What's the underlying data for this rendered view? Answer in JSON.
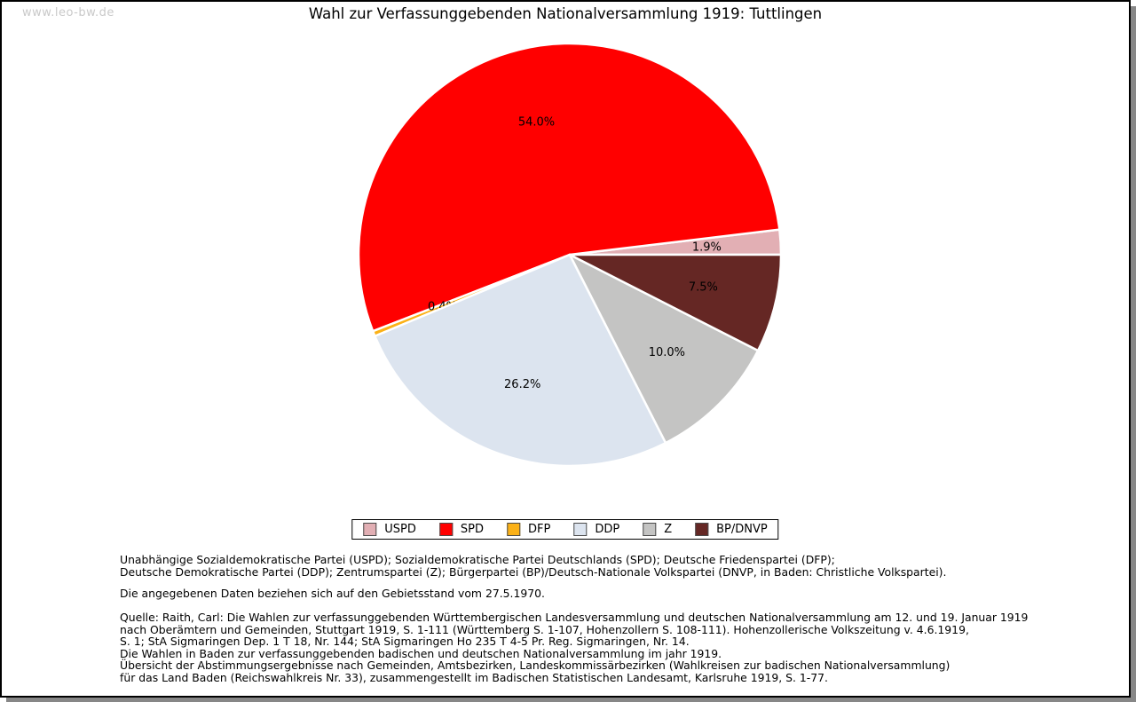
{
  "watermark": "www.leo-bw.de",
  "title": "Wahl zur Verfassunggebenden Nationalversammlung 1919: Tuttlingen",
  "chart_data": {
    "type": "pie",
    "title": "Wahl zur Verfassunggebenden Nationalversammlung 1919: Tuttlingen",
    "unit": "percent",
    "start_angle_deg": 0,
    "direction": "counterclockwise",
    "slices": [
      {
        "label": "USPD",
        "value": 1.9,
        "color": "#e2afb4"
      },
      {
        "label": "SPD",
        "value": 54.0,
        "color": "#ff0000"
      },
      {
        "label": "DFP",
        "value": 0.4,
        "color": "#fbb117"
      },
      {
        "label": "DDP",
        "value": 26.2,
        "color": "#dce4ef"
      },
      {
        "label": "Z",
        "value": 10.0,
        "color": "#c4c4c3"
      },
      {
        "label": "BP/DNVP",
        "value": 7.5,
        "color": "#652724"
      }
    ],
    "legend": {
      "position": "bottom",
      "entries": [
        "USPD",
        "SPD",
        "DFP",
        "DDP",
        "Z",
        "BP/DNVP"
      ]
    },
    "value_labels": [
      "1.9%",
      "54.0%",
      "0.4%",
      "26.2%",
      "10.0%",
      "7.5%"
    ]
  },
  "notes": {
    "party_definitions": [
      "Unabhängige Sozialdemokratische Partei (USPD); Sozialdemokratische Partei Deutschlands (SPD); Deutsche Friedenspartei (DFP);",
      "Deutsche Demokratische Partei (DDP); Zentrumspartei (Z); Bürgerpartei (BP)/Deutsch-Nationale Volkspartei (DNVP, in Baden: Christliche Volkspartei)."
    ],
    "data_note": "Die angegebenen Daten beziehen sich auf den Gebietsstand vom 27.5.1970.",
    "source_lines": [
      "Quelle: Raith, Carl: Die Wahlen zur verfassunggebenden Württembergischen Landesversammlung und deutschen Nationalversammlung am 12. und 19. Januar 1919",
      "nach Oberämtern und Gemeinden, Stuttgart 1919, S. 1-111 (Württemberg S. 1-107, Hohenzollern S. 108-111). Hohenzollerische Volkszeitung v. 4.6.1919,",
      "S. 1; StA Sigmaringen Dep. 1 T 18, Nr. 144; StA Sigmaringen Ho 235 T 4-5 Pr. Reg. Sigmaringen, Nr. 14.",
      "Die Wahlen in Baden zur verfassunggebenden badischen und deutschen Nationalversammlung im jahr 1919.",
      "Übersicht der Abstimmungsergebnisse nach Gemeinden, Amtsbezirken, Landeskommissärbezirken (Wahlkreisen zur badischen Nationalversammlung)",
      "für das Land Baden (Reichswahlkreis Nr. 33), zusammengestellt im Badischen Statistischen Landesamt, Karlsruhe 1919, S. 1-77."
    ]
  }
}
